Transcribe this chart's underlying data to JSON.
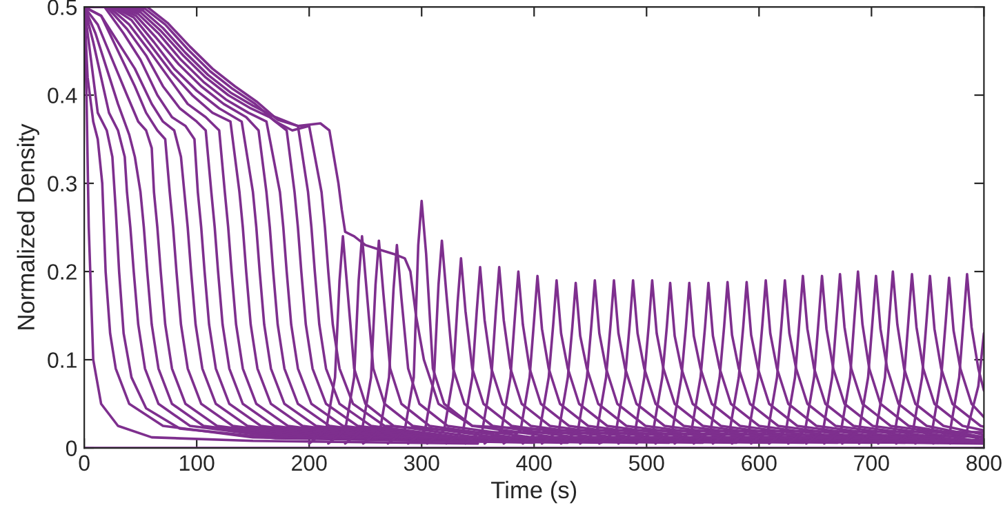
{
  "chart_data": {
    "type": "line",
    "xlabel": "Time (s)",
    "ylabel": "Normalized Density",
    "color": "#7e2f8e",
    "xlim": [
      0,
      800
    ],
    "ylim": [
      0,
      0.5
    ],
    "xticks": [
      0,
      100,
      200,
      300,
      400,
      500,
      600,
      700,
      800
    ],
    "yticks": [
      0,
      0.1,
      0.2,
      0.3,
      0.4,
      0.5
    ],
    "series": [
      {
        "x": [
          0,
          800
        ],
        "values": [
          0,
          0
        ]
      },
      {
        "x": [
          0,
          2,
          4,
          8,
          15,
          30,
          60,
          150,
          350
        ],
        "values": [
          0.5,
          0.4,
          0.25,
          0.1,
          0.05,
          0.025,
          0.012,
          0.008,
          0.005
        ]
      },
      {
        "x": [
          0,
          3,
          8,
          12,
          16,
          19,
          23,
          28,
          40,
          70,
          150,
          400
        ],
        "values": [
          0.5,
          0.42,
          0.37,
          0.35,
          0.3,
          0.2,
          0.13,
          0.09,
          0.05,
          0.025,
          0.012,
          0.006
        ]
      },
      {
        "x": [
          0,
          5,
          12,
          20,
          25,
          28,
          31,
          35,
          42,
          55,
          85,
          170,
          430
        ],
        "values": [
          0.5,
          0.45,
          0.38,
          0.36,
          0.33,
          0.27,
          0.2,
          0.13,
          0.08,
          0.045,
          0.022,
          0.011,
          0.006
        ]
      },
      {
        "x": [
          0,
          8,
          15,
          22,
          30,
          36,
          38,
          41,
          44,
          48,
          54,
          66,
          94,
          174,
          460
        ],
        "values": [
          0.5,
          0.46,
          0.42,
          0.38,
          0.36,
          0.33,
          0.29,
          0.25,
          0.2,
          0.14,
          0.09,
          0.05,
          0.025,
          0.012,
          0.006
        ]
      },
      {
        "x": [
          0,
          10,
          20,
          30,
          40,
          45,
          50,
          53,
          56,
          60,
          66,
          78,
          106,
          186,
          490
        ],
        "values": [
          0.5,
          0.47,
          0.43,
          0.39,
          0.355,
          0.33,
          0.29,
          0.25,
          0.2,
          0.14,
          0.09,
          0.05,
          0.025,
          0.012,
          0.006
        ]
      },
      {
        "x": [
          0,
          12,
          25,
          38,
          48,
          55,
          60,
          62,
          65,
          68,
          72,
          78,
          90,
          118,
          198,
          520
        ],
        "values": [
          0.5,
          0.48,
          0.44,
          0.4,
          0.37,
          0.36,
          0.34,
          0.29,
          0.25,
          0.2,
          0.14,
          0.09,
          0.05,
          0.025,
          0.012,
          0.006
        ]
      },
      {
        "x": [
          0,
          15,
          30,
          45,
          55,
          65,
          72,
          76,
          79,
          82,
          86,
          92,
          104,
          132,
          212,
          550
        ],
        "values": [
          0.5,
          0.49,
          0.45,
          0.41,
          0.38,
          0.36,
          0.35,
          0.29,
          0.25,
          0.2,
          0.14,
          0.09,
          0.05,
          0.025,
          0.012,
          0.006
        ]
      },
      {
        "x": [
          0,
          15,
          30,
          45,
          60,
          70,
          80,
          86,
          89,
          92,
          95,
          99,
          105,
          117,
          145,
          225,
          580
        ],
        "values": [
          0.5,
          0.49,
          0.46,
          0.43,
          0.39,
          0.37,
          0.36,
          0.33,
          0.29,
          0.25,
          0.2,
          0.14,
          0.09,
          0.05,
          0.025,
          0.012,
          0.006
        ]
      },
      {
        "x": [
          0,
          18,
          35,
          50,
          65,
          78,
          90,
          98,
          101,
          104,
          107,
          111,
          117,
          129,
          157,
          237,
          610
        ],
        "values": [
          0.5,
          0.5,
          0.47,
          0.44,
          0.4,
          0.375,
          0.365,
          0.35,
          0.29,
          0.25,
          0.2,
          0.14,
          0.09,
          0.05,
          0.025,
          0.012,
          0.006
        ]
      },
      {
        "x": [
          0,
          20,
          38,
          55,
          70,
          85,
          100,
          108,
          113,
          116,
          119,
          123,
          129,
          141,
          169,
          249,
          640
        ],
        "values": [
          0.5,
          0.5,
          0.475,
          0.445,
          0.41,
          0.385,
          0.37,
          0.36,
          0.29,
          0.25,
          0.2,
          0.14,
          0.09,
          0.05,
          0.025,
          0.012,
          0.006
        ]
      },
      {
        "x": [
          0,
          22,
          40,
          58,
          75,
          92,
          108,
          120,
          125,
          128,
          131,
          135,
          141,
          153,
          181,
          261,
          670
        ],
        "values": [
          0.5,
          0.5,
          0.48,
          0.45,
          0.42,
          0.39,
          0.375,
          0.36,
          0.29,
          0.25,
          0.2,
          0.14,
          0.09,
          0.05,
          0.025,
          0.012,
          0.006
        ]
      },
      {
        "x": [
          0,
          24,
          42,
          60,
          78,
          96,
          114,
          130,
          138,
          141,
          144,
          148,
          154,
          166,
          194,
          274,
          700
        ],
        "values": [
          0.5,
          0.5,
          0.485,
          0.455,
          0.425,
          0.4,
          0.38,
          0.37,
          0.29,
          0.25,
          0.2,
          0.14,
          0.09,
          0.05,
          0.025,
          0.012,
          0.006
        ]
      },
      {
        "x": [
          0,
          26,
          44,
          62,
          80,
          100,
          120,
          140,
          150,
          153,
          156,
          160,
          166,
          178,
          206,
          286,
          730
        ],
        "values": [
          0.5,
          0.5,
          0.488,
          0.46,
          0.43,
          0.405,
          0.385,
          0.37,
          0.29,
          0.25,
          0.2,
          0.14,
          0.09,
          0.05,
          0.025,
          0.012,
          0.006
        ]
      },
      {
        "x": [
          0,
          28,
          46,
          64,
          84,
          104,
          124,
          144,
          155,
          162,
          165,
          168,
          172,
          178,
          190,
          218,
          298,
          760
        ],
        "values": [
          0.5,
          0.5,
          0.49,
          0.465,
          0.435,
          0.41,
          0.39,
          0.375,
          0.36,
          0.29,
          0.25,
          0.2,
          0.14,
          0.09,
          0.05,
          0.025,
          0.012,
          0.006
        ]
      },
      {
        "x": [
          0,
          30,
          48,
          66,
          86,
          106,
          126,
          146,
          162,
          174,
          177,
          180,
          184,
          190,
          202,
          230,
          310,
          790
        ],
        "values": [
          0.5,
          0.5,
          0.492,
          0.47,
          0.44,
          0.415,
          0.395,
          0.38,
          0.37,
          0.29,
          0.25,
          0.2,
          0.14,
          0.09,
          0.05,
          0.025,
          0.012,
          0.006
        ]
      },
      {
        "x": [
          0,
          32,
          50,
          68,
          88,
          108,
          128,
          148,
          165,
          180,
          187,
          190,
          193,
          197,
          203,
          215,
          243,
          323,
          800
        ],
        "values": [
          0.5,
          0.5,
          0.494,
          0.473,
          0.445,
          0.42,
          0.4,
          0.385,
          0.375,
          0.36,
          0.29,
          0.25,
          0.2,
          0.14,
          0.09,
          0.05,
          0.025,
          0.012,
          0.005
        ]
      },
      {
        "x": [
          0,
          34,
          52,
          70,
          90,
          110,
          130,
          150,
          170,
          190,
          199,
          202,
          205,
          209,
          215,
          227,
          255,
          335,
          800
        ],
        "values": [
          0.5,
          0.5,
          0.496,
          0.476,
          0.448,
          0.423,
          0.403,
          0.388,
          0.375,
          0.365,
          0.29,
          0.25,
          0.2,
          0.14,
          0.09,
          0.05,
          0.025,
          0.012,
          0.009
        ]
      },
      {
        "x": [
          0,
          36,
          54,
          72,
          92,
          112,
          132,
          152,
          170,
          185,
          200,
          211,
          214,
          217,
          221,
          227,
          239,
          267,
          347,
          800
        ],
        "values": [
          0.5,
          0.5,
          0.498,
          0.48,
          0.452,
          0.427,
          0.407,
          0.39,
          0.37,
          0.36,
          0.365,
          0.29,
          0.25,
          0.2,
          0.14,
          0.09,
          0.05,
          0.025,
          0.018,
          0.013
        ]
      },
      {
        "x": [
          0,
          38,
          56,
          74,
          94,
          114,
          134,
          154,
          172,
          190,
          210,
          218,
          222,
          226,
          229,
          232,
          240,
          250,
          262,
          275,
          285,
          290,
          295,
          302,
          315,
          345,
          420,
          800
        ],
        "values": [
          0.5,
          0.5,
          0.5,
          0.482,
          0.455,
          0.43,
          0.41,
          0.392,
          0.372,
          0.365,
          0.368,
          0.36,
          0.33,
          0.3,
          0.27,
          0.245,
          0.24,
          0.23,
          0.225,
          0.22,
          0.215,
          0.2,
          0.15,
          0.1,
          0.05,
          0.025,
          0.02,
          0.018
        ]
      },
      {
        "x": [
          200,
          215,
          223,
          227,
          230,
          234,
          240,
          250,
          275,
          350,
          800
        ],
        "values": [
          0.005,
          0.02,
          0.08,
          0.19,
          0.24,
          0.18,
          0.09,
          0.05,
          0.025,
          0.012,
          0.006
        ]
      },
      {
        "x": [
          217,
          232,
          240,
          244,
          247,
          251,
          257,
          267,
          292,
          367,
          800
        ],
        "values": [
          0.005,
          0.02,
          0.08,
          0.19,
          0.24,
          0.18,
          0.09,
          0.05,
          0.025,
          0.012,
          0.006
        ]
      },
      {
        "x": [
          232,
          247,
          255,
          259,
          262,
          266,
          272,
          282,
          307,
          382,
          800
        ],
        "values": [
          0.005,
          0.02,
          0.08,
          0.185,
          0.235,
          0.175,
          0.09,
          0.05,
          0.025,
          0.012,
          0.006
        ]
      },
      {
        "x": [
          248,
          263,
          271,
          275,
          278,
          282,
          288,
          298,
          323,
          398,
          800
        ],
        "values": [
          0.005,
          0.02,
          0.08,
          0.18,
          0.23,
          0.17,
          0.09,
          0.05,
          0.025,
          0.012,
          0.006
        ]
      },
      {
        "x": [
          270,
          285,
          293,
          297,
          300,
          304,
          310,
          320,
          345,
          420,
          800
        ],
        "values": [
          0.005,
          0.02,
          0.08,
          0.23,
          0.28,
          0.22,
          0.09,
          0.05,
          0.025,
          0.012,
          0.006
        ]
      },
      {
        "x": [
          288,
          303,
          311,
          315,
          318,
          322,
          328,
          338,
          363,
          438,
          800
        ],
        "values": [
          0.005,
          0.02,
          0.08,
          0.185,
          0.235,
          0.175,
          0.09,
          0.05,
          0.025,
          0.012,
          0.006
        ]
      },
      {
        "x": [
          305,
          320,
          328,
          332,
          335,
          339,
          345,
          355,
          380,
          455,
          800
        ],
        "values": [
          0.005,
          0.02,
          0.08,
          0.165,
          0.215,
          0.155,
          0.09,
          0.05,
          0.025,
          0.012,
          0.006
        ]
      },
      {
        "x": [
          322,
          337,
          345,
          349,
          352,
          356,
          362,
          372,
          397,
          472,
          800
        ],
        "values": [
          0.005,
          0.02,
          0.08,
          0.155,
          0.205,
          0.145,
          0.09,
          0.05,
          0.025,
          0.012,
          0.006
        ]
      },
      {
        "x": [
          339,
          354,
          362,
          366,
          369,
          373,
          379,
          389,
          414,
          489,
          800
        ],
        "values": [
          0.005,
          0.02,
          0.08,
          0.155,
          0.205,
          0.145,
          0.09,
          0.05,
          0.025,
          0.012,
          0.006
        ]
      },
      {
        "x": [
          356,
          371,
          379,
          383,
          386,
          390,
          396,
          406,
          431,
          506,
          800
        ],
        "values": [
          0.005,
          0.02,
          0.08,
          0.15,
          0.2,
          0.14,
          0.09,
          0.05,
          0.025,
          0.012,
          0.006
        ]
      },
      {
        "x": [
          373,
          388,
          396,
          400,
          403,
          407,
          413,
          423,
          448,
          523,
          800
        ],
        "values": [
          0.005,
          0.02,
          0.08,
          0.145,
          0.195,
          0.135,
          0.09,
          0.05,
          0.025,
          0.012,
          0.006
        ]
      },
      {
        "x": [
          390,
          405,
          413,
          417,
          420,
          424,
          430,
          440,
          465,
          540,
          800
        ],
        "values": [
          0.005,
          0.02,
          0.08,
          0.14,
          0.19,
          0.13,
          0.09,
          0.05,
          0.025,
          0.012,
          0.006
        ]
      },
      {
        "x": [
          407,
          422,
          430,
          434,
          437,
          441,
          447,
          457,
          482,
          557,
          800
        ],
        "values": [
          0.005,
          0.02,
          0.08,
          0.137,
          0.187,
          0.127,
          0.09,
          0.05,
          0.025,
          0.012,
          0.006
        ]
      },
      {
        "x": [
          424,
          439,
          447,
          451,
          454,
          458,
          464,
          474,
          499,
          574,
          800
        ],
        "values": [
          0.005,
          0.02,
          0.08,
          0.14,
          0.19,
          0.13,
          0.09,
          0.05,
          0.025,
          0.012,
          0.006
        ]
      },
      {
        "x": [
          441,
          456,
          464,
          468,
          471,
          475,
          481,
          491,
          516,
          591,
          800
        ],
        "values": [
          0.005,
          0.02,
          0.08,
          0.14,
          0.19,
          0.13,
          0.09,
          0.05,
          0.025,
          0.012,
          0.006
        ]
      },
      {
        "x": [
          458,
          473,
          481,
          485,
          488,
          492,
          498,
          508,
          533,
          608,
          800
        ],
        "values": [
          0.005,
          0.02,
          0.08,
          0.14,
          0.19,
          0.13,
          0.09,
          0.05,
          0.025,
          0.012,
          0.006
        ]
      },
      {
        "x": [
          475,
          490,
          498,
          502,
          505,
          509,
          515,
          525,
          550,
          625,
          800
        ],
        "values": [
          0.005,
          0.02,
          0.08,
          0.14,
          0.19,
          0.13,
          0.09,
          0.05,
          0.025,
          0.012,
          0.006
        ]
      },
      {
        "x": [
          491,
          506,
          514,
          518,
          521,
          525,
          531,
          541,
          566,
          641,
          800
        ],
        "values": [
          0.005,
          0.02,
          0.08,
          0.137,
          0.187,
          0.127,
          0.09,
          0.05,
          0.025,
          0.012,
          0.006
        ]
      },
      {
        "x": [
          508,
          523,
          531,
          535,
          538,
          542,
          548,
          558,
          583,
          658,
          800
        ],
        "values": [
          0.005,
          0.02,
          0.08,
          0.137,
          0.187,
          0.127,
          0.09,
          0.05,
          0.025,
          0.012,
          0.006
        ]
      },
      {
        "x": [
          525,
          540,
          548,
          552,
          555,
          559,
          565,
          575,
          600,
          675,
          800
        ],
        "values": [
          0.005,
          0.02,
          0.08,
          0.137,
          0.187,
          0.127,
          0.09,
          0.05,
          0.025,
          0.012,
          0.006
        ]
      },
      {
        "x": [
          542,
          557,
          565,
          569,
          572,
          576,
          582,
          592,
          617,
          692,
          800
        ],
        "values": [
          0.005,
          0.02,
          0.08,
          0.138,
          0.188,
          0.128,
          0.09,
          0.05,
          0.025,
          0.012,
          0.006
        ]
      },
      {
        "x": [
          559,
          574,
          582,
          586,
          589,
          593,
          599,
          609,
          634,
          709,
          800
        ],
        "values": [
          0.005,
          0.02,
          0.08,
          0.138,
          0.188,
          0.128,
          0.09,
          0.05,
          0.025,
          0.012,
          0.006
        ]
      },
      {
        "x": [
          576,
          591,
          599,
          603,
          606,
          610,
          616,
          626,
          651,
          726,
          800
        ],
        "values": [
          0.005,
          0.02,
          0.08,
          0.14,
          0.19,
          0.13,
          0.09,
          0.05,
          0.025,
          0.012,
          0.006
        ]
      },
      {
        "x": [
          593,
          608,
          616,
          620,
          623,
          627,
          633,
          643,
          668,
          743,
          800
        ],
        "values": [
          0.005,
          0.02,
          0.08,
          0.14,
          0.19,
          0.13,
          0.09,
          0.05,
          0.025,
          0.012,
          0.006
        ]
      },
      {
        "x": [
          609,
          624,
          632,
          636,
          639,
          643,
          649,
          659,
          684,
          759,
          800
        ],
        "values": [
          0.005,
          0.02,
          0.08,
          0.145,
          0.195,
          0.135,
          0.09,
          0.05,
          0.025,
          0.012,
          0.006
        ]
      },
      {
        "x": [
          626,
          641,
          649,
          653,
          656,
          660,
          666,
          676,
          701,
          776,
          800
        ],
        "values": [
          0.005,
          0.02,
          0.08,
          0.145,
          0.195,
          0.135,
          0.09,
          0.05,
          0.025,
          0.012,
          0.006
        ]
      },
      {
        "x": [
          642,
          657,
          665,
          669,
          672,
          676,
          682,
          692,
          717,
          792,
          800
        ],
        "values": [
          0.005,
          0.02,
          0.08,
          0.147,
          0.197,
          0.137,
          0.09,
          0.05,
          0.025,
          0.012,
          0.006
        ]
      },
      {
        "x": [
          658,
          673,
          681,
          685,
          688,
          692,
          698,
          708,
          733,
          800
        ],
        "values": [
          0.005,
          0.02,
          0.08,
          0.15,
          0.2,
          0.14,
          0.09,
          0.05,
          0.025,
          0.011
        ]
      },
      {
        "x": [
          674,
          689,
          697,
          701,
          704,
          708,
          714,
          724,
          749,
          800
        ],
        "values": [
          0.005,
          0.02,
          0.08,
          0.145,
          0.195,
          0.135,
          0.09,
          0.05,
          0.025,
          0.012
        ]
      },
      {
        "x": [
          689,
          704,
          712,
          716,
          719,
          723,
          729,
          739,
          764,
          800
        ],
        "values": [
          0.005,
          0.02,
          0.08,
          0.15,
          0.2,
          0.14,
          0.09,
          0.05,
          0.025,
          0.015
        ]
      },
      {
        "x": [
          706,
          721,
          729,
          733,
          736,
          740,
          746,
          756,
          781,
          800
        ],
        "values": [
          0.005,
          0.02,
          0.08,
          0.147,
          0.197,
          0.137,
          0.09,
          0.05,
          0.025,
          0.02
        ]
      },
      {
        "x": [
          722,
          737,
          745,
          749,
          752,
          756,
          762,
          772,
          797,
          800
        ],
        "values": [
          0.005,
          0.02,
          0.08,
          0.145,
          0.195,
          0.135,
          0.09,
          0.05,
          0.025,
          0.024
        ]
      },
      {
        "x": [
          739,
          754,
          762,
          766,
          769,
          773,
          779,
          789,
          800
        ],
        "values": [
          0.005,
          0.02,
          0.08,
          0.143,
          0.193,
          0.133,
          0.09,
          0.05,
          0.035
        ]
      },
      {
        "x": [
          755,
          770,
          778,
          782,
          785,
          789,
          795,
          800
        ],
        "values": [
          0.005,
          0.02,
          0.08,
          0.147,
          0.197,
          0.137,
          0.09,
          0.065
        ]
      },
      {
        "x": [
          770,
          785,
          795,
          800
        ],
        "values": [
          0.005,
          0.02,
          0.07,
          0.13
        ]
      }
    ]
  }
}
